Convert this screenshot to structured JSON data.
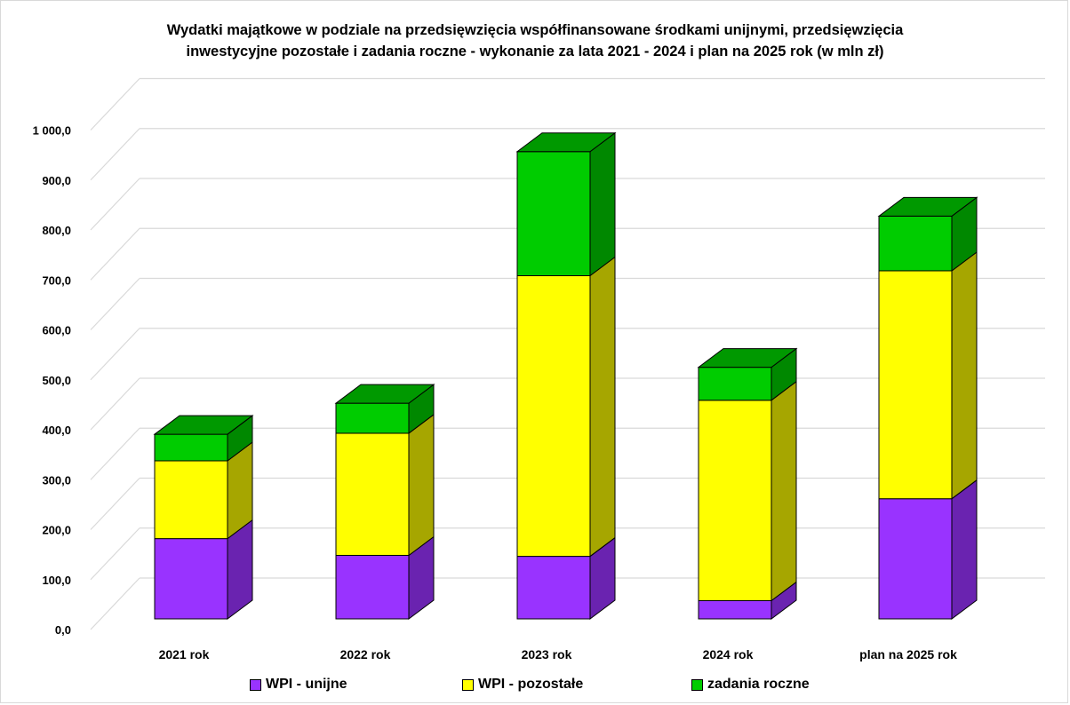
{
  "chart_data": {
    "type": "bar",
    "stacked": true,
    "style": "3d-column",
    "title": "Wydatki majątkowe w podziale na przedsięwzięcia współfinansowane środkami unijnymi, przedsięwzięcia inwestycyjne pozostałe i zadania roczne - wykonanie za lata 2021 - 2024 i plan na 2025 rok (w mln zł)",
    "title_lines": [
      "Wydatki majątkowe w podziale na przedsięwzięcia współfinansowane środkami unijnymi, przedsięwzięcia",
      "inwestycyjne pozostałe i zadania roczne - wykonanie za lata 2021 - 2024 i plan na 2025 rok (w mln zł)"
    ],
    "categories": [
      "2021 rok",
      "2022 rok",
      "2023 rok",
      "2024 rok",
      "plan na 2025 rok"
    ],
    "series": [
      {
        "name": "WPI - unijne",
        "values": [
          163,
          129,
          127,
          37,
          244
        ],
        "color": "#9933ff",
        "side_color": "#6a23b0",
        "top_color": "#7a28c8"
      },
      {
        "name": "WPI - pozostałe",
        "values": [
          158,
          248,
          570,
          407,
          463
        ],
        "color": "#ffff00",
        "side_color": "#a6a600",
        "top_color": "#cccc00"
      },
      {
        "name": "zadania roczne",
        "values": [
          54,
          61,
          252,
          67,
          111
        ],
        "color": "#00cc00",
        "side_color": "#008800",
        "top_color": "#009900"
      }
    ],
    "ylim": [
      0,
      1000
    ],
    "ytick_step": 100,
    "ytick_labels": [
      "0,0",
      "100,0",
      "200,0",
      "300,0",
      "400,0",
      "500,0",
      "600,0",
      "700,0",
      "800,0",
      "900,0",
      "1 000,0"
    ],
    "grid": true,
    "legend_position": "bottom"
  }
}
